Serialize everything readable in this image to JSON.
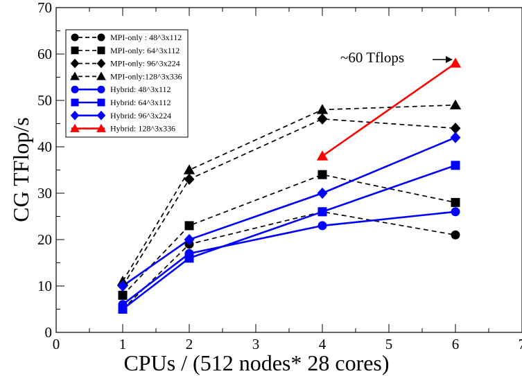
{
  "chart_data": {
    "type": "line",
    "title": "",
    "xlabel": "CPUs / (512 nodes* 28 cores)",
    "ylabel": "CG TFlop/s",
    "xlim": [
      0,
      7
    ],
    "ylim": [
      0,
      70
    ],
    "xticks": [
      0,
      1,
      2,
      3,
      4,
      5,
      6,
      7
    ],
    "yticks": [
      0,
      10,
      20,
      30,
      40,
      50,
      60,
      70
    ],
    "grid": false,
    "legend_position": "top-left",
    "series": [
      {
        "name": "MPI-only : 48^3x112",
        "color": "#000000",
        "marker": "circle",
        "dash": true,
        "x": [
          1,
          2,
          4,
          6
        ],
        "y": [
          5,
          19,
          26,
          21
        ]
      },
      {
        "name": "MPI-only: 64^3x112",
        "color": "#000000",
        "marker": "square",
        "dash": true,
        "x": [
          1,
          2,
          4,
          6
        ],
        "y": [
          8,
          23,
          34,
          28
        ]
      },
      {
        "name": "MPI-only: 96^3x224",
        "color": "#000000",
        "marker": "diamond",
        "dash": true,
        "x": [
          1,
          2,
          4,
          6
        ],
        "y": [
          10,
          33,
          46,
          44
        ]
      },
      {
        "name": "MPI-only:128^3x336",
        "color": "#000000",
        "marker": "triangle",
        "dash": true,
        "x": [
          1,
          2,
          4,
          6
        ],
        "y": [
          11,
          35,
          48,
          49
        ]
      },
      {
        "name": "Hybrid: 48^3x112",
        "color": "#0000ff",
        "marker": "circle",
        "dash": false,
        "x": [
          1,
          2,
          4,
          6
        ],
        "y": [
          6,
          17,
          23,
          26
        ]
      },
      {
        "name": "Hybrid: 64^3x112",
        "color": "#0000ff",
        "marker": "square",
        "dash": false,
        "x": [
          1,
          2,
          4,
          6
        ],
        "y": [
          5,
          16,
          26,
          36
        ]
      },
      {
        "name": "Hybrid: 96^3x224",
        "color": "#0000ff",
        "marker": "diamond",
        "dash": false,
        "x": [
          1,
          2,
          4,
          6
        ],
        "y": [
          10,
          20,
          30,
          42
        ]
      },
      {
        "name": "Hybrid: 128^3x336",
        "color": "#ff0000",
        "marker": "triangle",
        "dash": false,
        "x": [
          4,
          6
        ],
        "y": [
          38,
          58
        ]
      }
    ],
    "annotations": [
      {
        "text": "~60 Tflops",
        "arrow_to": {
          "x": 5.85,
          "y": 59
        }
      }
    ]
  }
}
